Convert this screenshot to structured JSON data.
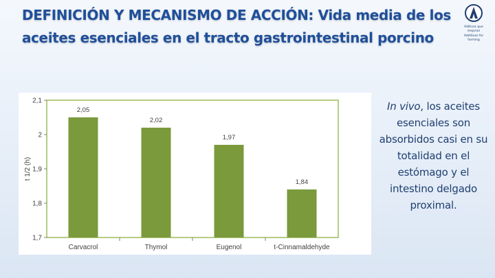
{
  "slide": {
    "title": "DEFINICIÓN Y MECANISMO DE ACCIÓN: Vida media de los aceites esenciales en el tracto gastrointestinal porcino",
    "logo_caption_1": "Aditivos que mejoran",
    "logo_caption_2": "Additives for farming",
    "side_text_italic": "In vivo",
    "side_text_rest": ", los aceites esenciales son absorbidos casi en su totalidad en el estómago y el intestino delgado proximal."
  },
  "colors": {
    "title": "#1f4f9a",
    "bar": "#7a9a3c",
    "plot_border": "#9bbb59"
  },
  "chart_data": {
    "type": "bar",
    "categories": [
      "Carvacrol",
      "Thymol",
      "Eugenol",
      "t-Cinnamaldehyde"
    ],
    "values": [
      2.05,
      2.02,
      1.97,
      1.84
    ],
    "data_labels": [
      "2,05",
      "2,02",
      "1,97",
      "1,84"
    ],
    "title": "",
    "xlabel": "",
    "ylabel": "t 1/2  (h)",
    "ylim": [
      1.7,
      2.1
    ],
    "yticks": [
      1.7,
      1.8,
      1.9,
      2.0,
      2.1
    ],
    "ytick_labels": [
      "1,7",
      "1,8",
      "1,9",
      "2",
      "2,1"
    ],
    "grid": false,
    "legend": "none"
  }
}
